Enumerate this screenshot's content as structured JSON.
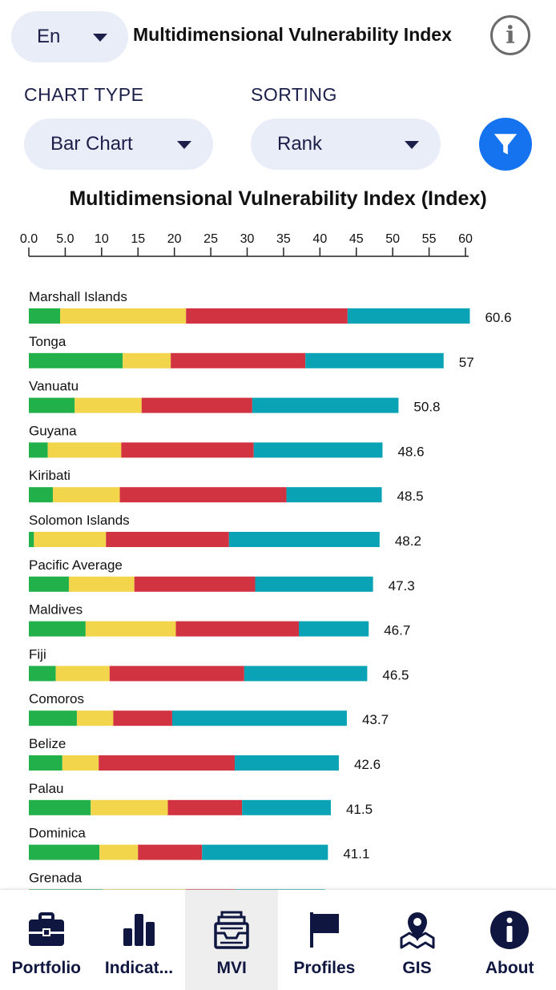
{
  "header": {
    "language": "En",
    "title": "Multidimensional Vulnerability Index"
  },
  "controls": {
    "chart_type_label": "CHART TYPE",
    "chart_type_value": "Bar Chart",
    "sorting_label": "SORTING",
    "sorting_value": "Rank"
  },
  "colors": {
    "accent": "#1673f0",
    "navy": "#0f1640",
    "segments": [
      "#22b04b",
      "#f2d54a",
      "#d23341",
      "#0aa3b5"
    ]
  },
  "chart_data": {
    "type": "bar",
    "orientation": "horizontal",
    "stacked": true,
    "title": "Multidimensional Vulnerability Index (Index)",
    "xlim": [
      0,
      60
    ],
    "ticks": [
      "0.0",
      "5.0",
      "10",
      "15",
      "20",
      "25",
      "30",
      "35",
      "40",
      "45",
      "50",
      "55",
      "60"
    ],
    "categories": [
      "Marshall Islands",
      "Tonga",
      "Vanuatu",
      "Guyana",
      "Kiribati",
      "Solomon Islands",
      "Pacific Average",
      "Maldives",
      "Fiji",
      "Comoros",
      "Belize",
      "Palau",
      "Dominica",
      "Grenada"
    ],
    "totals": [
      "60.6",
      "57",
      "50.8",
      "48.6",
      "48.5",
      "48.2",
      "47.3",
      "46.7",
      "46.5",
      "43.7",
      "42.6",
      "41.5",
      "41.1",
      ""
    ],
    "series": [
      {
        "values": [
          4.3,
          12.9,
          6.3,
          2.6,
          3.3,
          0.7,
          5.5,
          7.8,
          3.7,
          6.6,
          4.6,
          8.5,
          9.7,
          10.2
        ]
      },
      {
        "values": [
          17.3,
          6.6,
          9.2,
          10.1,
          9.2,
          9.9,
          9.0,
          12.4,
          7.4,
          5.0,
          5.0,
          10.6,
          5.3,
          11.4
        ]
      },
      {
        "values": [
          22.2,
          18.5,
          15.2,
          18.2,
          22.9,
          16.9,
          16.6,
          16.9,
          18.5,
          8.1,
          18.7,
          10.2,
          8.8,
          6.8
        ]
      },
      {
        "values": [
          16.8,
          19.0,
          20.1,
          17.7,
          13.1,
          20.7,
          16.2,
          9.6,
          16.9,
          24.0,
          14.3,
          12.2,
          17.3,
          12.3
        ]
      }
    ]
  },
  "nav": {
    "items": [
      {
        "label": "Portfolio",
        "icon": "briefcase-icon"
      },
      {
        "label": "Indicat...",
        "icon": "bar-chart-icon"
      },
      {
        "label": "MVI",
        "icon": "inbox-tray-icon"
      },
      {
        "label": "Profiles",
        "icon": "flag-icon"
      },
      {
        "label": "GIS",
        "icon": "map-pin-icon"
      },
      {
        "label": "About",
        "icon": "info-icon"
      }
    ],
    "active": "MVI"
  }
}
